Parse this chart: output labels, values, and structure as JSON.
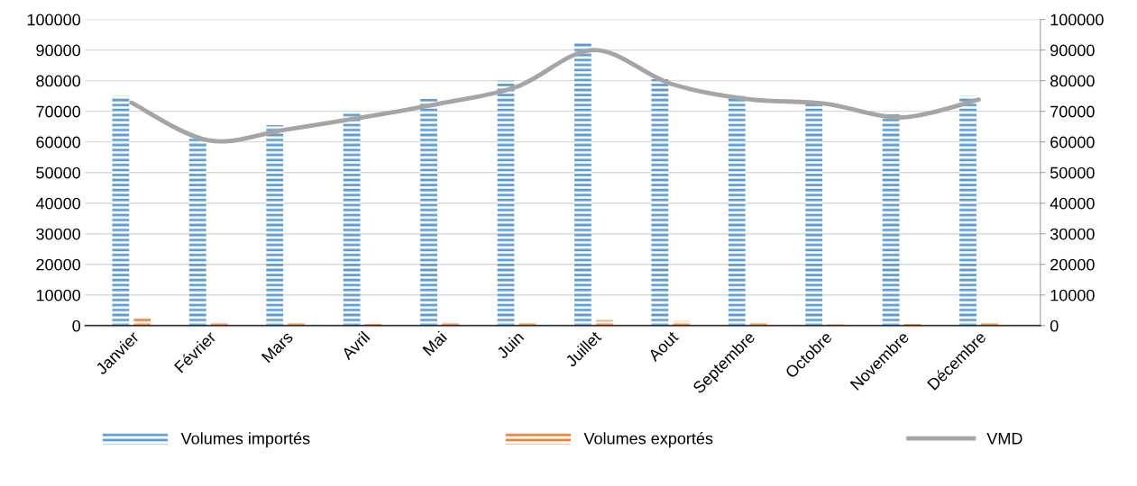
{
  "chart_data": {
    "type": "bar",
    "categories": [
      "Janvier",
      "Février",
      "Mars",
      "Avril",
      "Mai",
      "Juin",
      "Juillet",
      "Aout",
      "Septembre",
      "Octobre",
      "Novembre",
      "Décembre"
    ],
    "series": [
      {
        "name": "Volumes importés",
        "color": "#5b9bd5",
        "values": [
          75000,
          61500,
          65500,
          70000,
          74000,
          80000,
          92500,
          80500,
          75000,
          73000,
          69000,
          75000
        ]
      },
      {
        "name": "Volumes exportés",
        "color": "#ed7d31",
        "values": [
          2500,
          1000,
          800,
          500,
          900,
          900,
          1800,
          1500,
          1200,
          400,
          500,
          900
        ]
      },
      {
        "name": "VMD",
        "type": "line",
        "axis": "y2",
        "color": "#a5a5a5",
        "values": [
          72800,
          60500,
          64000,
          68000,
          72500,
          78000,
          90000,
          79000,
          74000,
          72500,
          68000,
          73800
        ]
      }
    ],
    "ylim": [
      0,
      100000
    ],
    "yticks": [
      0,
      10000,
      20000,
      30000,
      40000,
      50000,
      60000,
      70000,
      80000,
      90000,
      100000
    ],
    "y2lim": [
      0,
      100000
    ],
    "y2ticks": [
      0,
      10000,
      20000,
      30000,
      40000,
      50000,
      60000,
      70000,
      80000,
      90000,
      100000
    ],
    "grid": "y",
    "legend": "bottom",
    "marker": "none",
    "line_style": "solid"
  }
}
